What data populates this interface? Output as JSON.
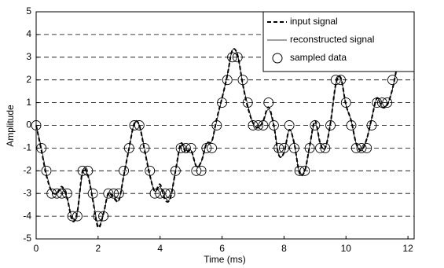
{
  "chart_data": {
    "type": "line",
    "xlabel": "Time (ms)",
    "ylabel": "Amplitude",
    "x": [
      0,
      0.17,
      0.33,
      0.5,
      0.67,
      0.83,
      1,
      1.17,
      1.33,
      1.5,
      1.67,
      1.83,
      2,
      2.17,
      2.33,
      2.5,
      2.67,
      2.83,
      3,
      3.17,
      3.33,
      3.5,
      3.67,
      3.83,
      4,
      4.17,
      4.33,
      4.5,
      4.67,
      4.83,
      5,
      5.17,
      5.33,
      5.5,
      5.67,
      5.83,
      6,
      6.17,
      6.33,
      6.5,
      6.67,
      6.83,
      7,
      7.17,
      7.33,
      7.5,
      7.67,
      7.83,
      8,
      8.17,
      8.33,
      8.5,
      8.67,
      8.83,
      9,
      9.17,
      9.33,
      9.5,
      9.67,
      9.83,
      10,
      10.17,
      10.33,
      10.5,
      10.67,
      10.83,
      11,
      11.17,
      11.33,
      11.5,
      11.67,
      11.83
    ],
    "series": [
      {
        "name": "input signal",
        "color": "#000000",
        "style": "dashed",
        "values": [
          0,
          -1.1,
          -2.2,
          -2.9,
          -3.0,
          -2.7,
          -3.2,
          -4.2,
          -3.8,
          -2.0,
          -2.2,
          -3.3,
          -4.5,
          -3.9,
          -3.0,
          -3.2,
          -3.3,
          -2.2,
          -1.0,
          0.1,
          0.0,
          -1.1,
          -2.2,
          -2.9,
          -2.6,
          -3.3,
          -3.2,
          -2.0,
          -0.8,
          -1.2,
          -1.1,
          -1.8,
          -1.6,
          -0.8,
          -0.7,
          0.3,
          1.2,
          2.2,
          3.3,
          3.1,
          1.8,
          0.8,
          0.1,
          -0.1,
          0.2,
          0.8,
          0.0,
          -1.3,
          -1.2,
          -0.2,
          -0.8,
          -2.1,
          -2.0,
          -0.9,
          0.2,
          -0.8,
          -1.0,
          0.1,
          1.8,
          2.1,
          0.9,
          0.2,
          -0.8,
          -1.1,
          -0.6,
          0.3,
          1.2,
          0.8,
          0.9,
          1.6,
          2.8,
          4.4
        ]
      },
      {
        "name": "reconstructed signal",
        "color": "#000000",
        "style": "solid",
        "values": [
          0,
          -1.0,
          -2.1,
          -2.9,
          -3.0,
          -2.8,
          -3.2,
          -4.1,
          -3.8,
          -2.1,
          -2.2,
          -3.2,
          -4.4,
          -3.9,
          -3.0,
          -3.1,
          -3.3,
          -2.2,
          -1.0,
          0.1,
          0.0,
          -1.0,
          -2.2,
          -2.9,
          -2.7,
          -3.2,
          -3.2,
          -2.0,
          -0.9,
          -1.1,
          -1.1,
          -1.8,
          -1.6,
          -0.8,
          -0.7,
          0.2,
          1.2,
          2.2,
          3.3,
          3.1,
          1.8,
          0.9,
          0.1,
          -0.1,
          0.2,
          0.7,
          0.0,
          -1.3,
          -1.2,
          -0.2,
          -0.8,
          -2.1,
          -2.0,
          -0.9,
          0.1,
          -0.8,
          -1.0,
          0.1,
          1.8,
          2.1,
          0.9,
          0.2,
          -0.8,
          -1.1,
          -0.6,
          0.3,
          1.2,
          0.8,
          0.9,
          1.6,
          2.8,
          4.4
        ]
      },
      {
        "name": "sampled data",
        "color": "#000000",
        "style": "markers",
        "values": [
          0,
          -1,
          -2,
          -3,
          -3,
          -3,
          -3,
          -4,
          -4,
          -2,
          -2,
          -3,
          -4,
          -4,
          -3,
          -3,
          -3,
          -2,
          -1,
          0,
          0,
          -1,
          -2,
          -3,
          -3,
          -3,
          -3,
          -2,
          -1,
          -1,
          -1,
          -2,
          -2,
          -1,
          -1,
          0,
          1,
          2,
          3,
          3,
          2,
          1,
          0,
          0,
          0,
          1,
          0,
          -1,
          -1,
          0,
          -1,
          -2,
          -2,
          -1,
          0,
          -1,
          -1,
          0,
          2,
          2,
          1,
          0,
          -1,
          -1,
          -1,
          0,
          1,
          1,
          1,
          2,
          3,
          4
        ]
      }
    ],
    "xlim": [
      0,
      12.2
    ],
    "xticks": [
      0,
      2,
      4,
      6,
      8,
      10,
      12
    ],
    "ylim": [
      -5,
      5
    ],
    "yticks": [
      -5,
      -4,
      -3,
      -2,
      -1,
      0,
      1,
      2,
      3,
      4,
      5
    ],
    "grid": true,
    "legend": "upper right"
  }
}
